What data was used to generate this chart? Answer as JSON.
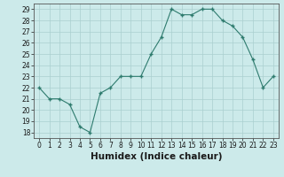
{
  "x": [
    0,
    1,
    2,
    3,
    4,
    5,
    6,
    7,
    8,
    9,
    10,
    11,
    12,
    13,
    14,
    15,
    16,
    17,
    18,
    19,
    20,
    21,
    22,
    23
  ],
  "y": [
    22,
    21,
    21,
    20.5,
    18.5,
    18,
    21.5,
    22,
    23,
    23,
    23,
    25,
    26.5,
    29,
    28.5,
    28.5,
    29,
    29,
    28,
    27.5,
    26.5,
    24.5,
    22,
    23
  ],
  "xlabel": "Humidex (Indice chaleur)",
  "yticks": [
    18,
    19,
    20,
    21,
    22,
    23,
    24,
    25,
    26,
    27,
    28,
    29
  ],
  "xticks": [
    0,
    1,
    2,
    3,
    4,
    5,
    6,
    7,
    8,
    9,
    10,
    11,
    12,
    13,
    14,
    15,
    16,
    17,
    18,
    19,
    20,
    21,
    22,
    23
  ],
  "line_color": "#2e7b6e",
  "bg_color": "#cceaea",
  "grid_color": "#aacfcf",
  "tick_label_fontsize": 5.5,
  "xlabel_fontsize": 7.5
}
